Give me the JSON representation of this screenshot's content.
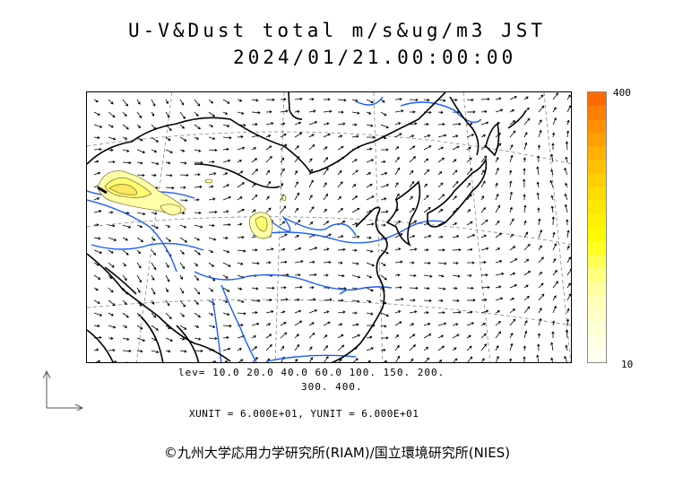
{
  "header": {
    "title": "U-V&Dust total m/s&ug/m3 JST",
    "datetime": "2024/01/21.00:00:00"
  },
  "colorbar": {
    "max_label": "400",
    "min_label": "10",
    "colors": [
      "#ff6a00",
      "#ff7d00",
      "#ff8e00",
      "#ffa000",
      "#ffb000",
      "#ffc000",
      "#ffcf00",
      "#ffdc00",
      "#ffe800",
      "#fff200",
      "#fff900",
      "#ffff22",
      "#ffff55",
      "#ffff80",
      "#ffffa0",
      "#ffffb8",
      "#ffffc8",
      "#ffffd6",
      "#ffffe4",
      "#fffff0"
    ]
  },
  "legend": {
    "levels_line1": "lev= 10.0 20.0 40.0 60.0 100. 150. 200.",
    "levels_line2": "300. 400.",
    "units": "XUNIT = 6.000E+01, YUNIT = 6.000E+01"
  },
  "map": {
    "colors": {
      "coast": "#000000",
      "rivers": "#1a5cff",
      "grid": "#777777",
      "vectors": "#000000",
      "dust_fill": "#ffffa8",
      "dust_line": "#8a7a3a"
    }
  },
  "footer": {
    "credit": "©九州大学応用力学研究所(RIAM)/国立環境研究所(NIES)"
  }
}
